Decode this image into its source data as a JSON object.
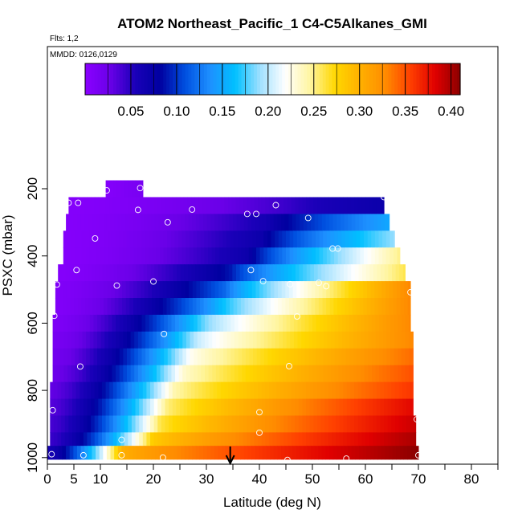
{
  "chart_data": {
    "type": "heatmap",
    "title": "ATOM2 Northeast_Pacific_1 C4-C5Alkanes_GMI",
    "subtitle_flights": "Flts: 1,2",
    "subtitle_dates": "MMDD: 0126,0129",
    "xlabel": "Latitude (deg N)",
    "ylabel": "PSXC (mbar)",
    "xlim": [
      0,
      85
    ],
    "ylim": [
      1000,
      0
    ],
    "x_ticks": [
      0,
      5,
      10,
      20,
      30,
      40,
      50,
      60,
      70,
      80
    ],
    "x_minor_ticks": [
      15,
      25,
      35,
      45,
      55,
      65,
      75,
      85
    ],
    "y_ticks": [
      200,
      400,
      600,
      800,
      1000
    ],
    "colorbar": {
      "range": [
        0,
        0.41
      ],
      "ticks": [
        0.05,
        0.1,
        0.15,
        0.2,
        0.25,
        0.3,
        0.35,
        0.4
      ],
      "tick_labels": [
        "0.05",
        "0.10",
        "0.15",
        "0.20",
        "0.25",
        "0.30",
        "0.35",
        "0.40"
      ],
      "colors": [
        "#8a00ff",
        "#6a00e8",
        "#1a00b8",
        "#0000a0",
        "#0050e0",
        "#1e90ff",
        "#00c0ff",
        "#a0e0ff",
        "#ffffff",
        "#fff5a0",
        "#ffd700",
        "#ffb000",
        "#ff8c00",
        "#ff4000",
        "#e00000",
        "#8b0000"
      ]
    },
    "rows": [
      {
        "p_top": 175,
        "p_bot": 225,
        "lat_start": 11.0,
        "lat_end": 18.0,
        "v0": 0.005,
        "v_mid": 0.01,
        "v_end": 0.015,
        "knee": 0.5
      },
      {
        "p_top": 225,
        "p_bot": 275,
        "lat_start": 4.0,
        "lat_end": 63.5,
        "v0": 0.005,
        "v_mid": 0.045,
        "v_end": 0.07,
        "knee": 0.7
      },
      {
        "p_top": 275,
        "p_bot": 325,
        "lat_start": 3.5,
        "lat_end": 64.5,
        "v0": 0.005,
        "v_mid": 0.06,
        "v_end": 0.15,
        "knee": 0.62
      },
      {
        "p_top": 325,
        "p_bot": 375,
        "lat_start": 3.0,
        "lat_end": 65.5,
        "v0": 0.005,
        "v_mid": 0.07,
        "v_end": 0.19,
        "knee": 0.6
      },
      {
        "p_top": 375,
        "p_bot": 425,
        "lat_start": 3.0,
        "lat_end": 66.5,
        "v0": 0.005,
        "v_mid": 0.07,
        "v_end": 0.25,
        "knee": 0.55
      },
      {
        "p_top": 425,
        "p_bot": 475,
        "lat_start": 2.0,
        "lat_end": 67.5,
        "v0": 0.005,
        "v_mid": 0.09,
        "v_end": 0.26,
        "knee": 0.5
      },
      {
        "p_top": 475,
        "p_bot": 525,
        "lat_start": 1.5,
        "lat_end": 68.5,
        "v0": 0.008,
        "v_mid": 0.12,
        "v_end": 0.33,
        "knee": 0.48
      },
      {
        "p_top": 525,
        "p_bot": 575,
        "lat_start": 1.5,
        "lat_end": 68.5,
        "v0": 0.008,
        "v_mid": 0.15,
        "v_end": 0.33,
        "knee": 0.45
      },
      {
        "p_top": 575,
        "p_bot": 625,
        "lat_start": 1.0,
        "lat_end": 68.5,
        "v0": 0.01,
        "v_mid": 0.18,
        "v_end": 0.33,
        "knee": 0.42
      },
      {
        "p_top": 625,
        "p_bot": 675,
        "lat_start": 1.0,
        "lat_end": 69.0,
        "v0": 0.015,
        "v_mid": 0.2,
        "v_end": 0.33,
        "knee": 0.4
      },
      {
        "p_top": 675,
        "p_bot": 725,
        "lat_start": 1.0,
        "lat_end": 69.0,
        "v0": 0.02,
        "v_mid": 0.22,
        "v_end": 0.34,
        "knee": 0.38
      },
      {
        "p_top": 725,
        "p_bot": 775,
        "lat_start": 1.0,
        "lat_end": 69.0,
        "v0": 0.025,
        "v_mid": 0.23,
        "v_end": 0.35,
        "knee": 0.36
      },
      {
        "p_top": 775,
        "p_bot": 825,
        "lat_start": 0.5,
        "lat_end": 69.0,
        "v0": 0.03,
        "v_mid": 0.24,
        "v_end": 0.36,
        "knee": 0.34
      },
      {
        "p_top": 825,
        "p_bot": 875,
        "lat_start": 0.5,
        "lat_end": 69.0,
        "v0": 0.035,
        "v_mid": 0.25,
        "v_end": 0.38,
        "knee": 0.32
      },
      {
        "p_top": 875,
        "p_bot": 925,
        "lat_start": 0.5,
        "lat_end": 69.5,
        "v0": 0.04,
        "v_mid": 0.26,
        "v_end": 0.39,
        "knee": 0.3
      },
      {
        "p_top": 925,
        "p_bot": 965,
        "lat_start": 0.5,
        "lat_end": 69.5,
        "v0": 0.045,
        "v_mid": 0.28,
        "v_end": 0.4,
        "knee": 0.28
      },
      {
        "p_top": 965,
        "p_bot": 1005,
        "lat_start": 0.0,
        "lat_end": 70.0,
        "v0": 0.06,
        "v_mid": 0.3,
        "v_end": 0.41,
        "knee": 0.2
      }
    ],
    "points": [
      {
        "lat": 11.2,
        "p": 205
      },
      {
        "lat": 17.5,
        "p": 198
      },
      {
        "lat": 4.0,
        "p": 242
      },
      {
        "lat": 5.8,
        "p": 242
      },
      {
        "lat": 2.8,
        "p": 276
      },
      {
        "lat": 17.1,
        "p": 263
      },
      {
        "lat": 27.3,
        "p": 262
      },
      {
        "lat": 37.7,
        "p": 275
      },
      {
        "lat": 39.4,
        "p": 275
      },
      {
        "lat": 43.1,
        "p": 249
      },
      {
        "lat": 49.2,
        "p": 287
      },
      {
        "lat": 63.5,
        "p": 225
      },
      {
        "lat": 22.7,
        "p": 300
      },
      {
        "lat": 9.0,
        "p": 348
      },
      {
        "lat": 53.8,
        "p": 378
      },
      {
        "lat": 54.8,
        "p": 378
      },
      {
        "lat": 5.5,
        "p": 442
      },
      {
        "lat": 38.4,
        "p": 442
      },
      {
        "lat": 1.8,
        "p": 485
      },
      {
        "lat": 13.1,
        "p": 488
      },
      {
        "lat": 20.0,
        "p": 476
      },
      {
        "lat": 40.7,
        "p": 475
      },
      {
        "lat": 45.8,
        "p": 484
      },
      {
        "lat": 51.2,
        "p": 480
      },
      {
        "lat": 52.6,
        "p": 490
      },
      {
        "lat": 68.5,
        "p": 508
      },
      {
        "lat": 1.3,
        "p": 578
      },
      {
        "lat": 47.1,
        "p": 580
      },
      {
        "lat": 22.0,
        "p": 632
      },
      {
        "lat": 6.2,
        "p": 729
      },
      {
        "lat": 45.6,
        "p": 728
      },
      {
        "lat": 1.0,
        "p": 859
      },
      {
        "lat": 40.0,
        "p": 865
      },
      {
        "lat": 69.7,
        "p": 886
      },
      {
        "lat": 40.0,
        "p": 926
      },
      {
        "lat": 14.0,
        "p": 947
      },
      {
        "lat": 0.8,
        "p": 990
      },
      {
        "lat": 6.8,
        "p": 993
      },
      {
        "lat": 14.0,
        "p": 993
      },
      {
        "lat": 21.8,
        "p": 1000
      },
      {
        "lat": 45.3,
        "p": 1007
      },
      {
        "lat": 56.4,
        "p": 1003
      },
      {
        "lat": 70.0,
        "p": 993
      }
    ],
    "arrow_marker": {
      "lat": 34.5
    }
  }
}
